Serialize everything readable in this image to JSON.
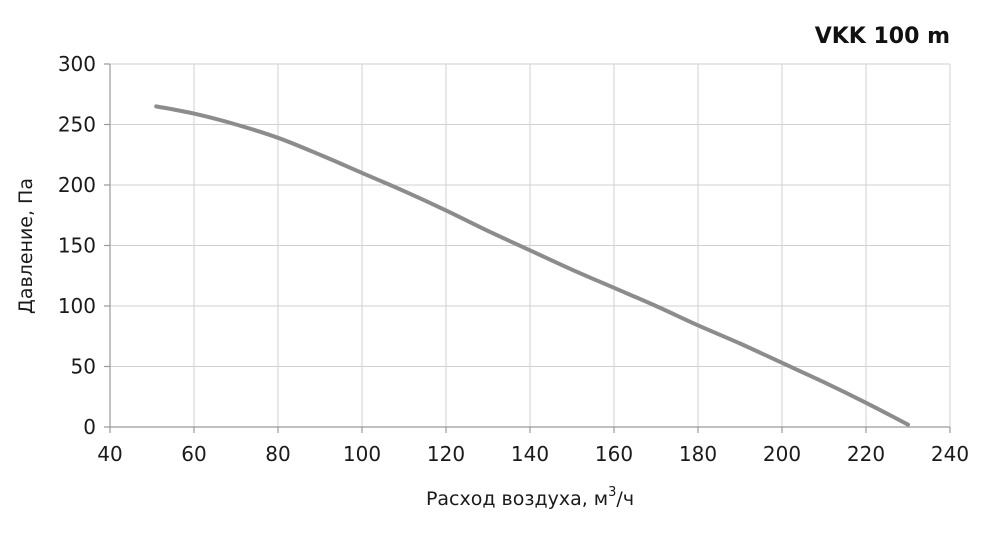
{
  "chart_data": {
    "type": "line",
    "title": "VKK 100 m",
    "xlabel": "Расход воздуха, м",
    "xlabel_sup": "3",
    "xlabel_suffix": "/ч",
    "ylabel": "Давление, Па",
    "xlim": [
      40,
      240
    ],
    "ylim": [
      0,
      300
    ],
    "x_ticks": [
      40,
      60,
      80,
      100,
      120,
      140,
      160,
      180,
      200,
      220,
      240
    ],
    "y_ticks": [
      0,
      50,
      100,
      150,
      200,
      250,
      300
    ],
    "grid": true,
    "series": [
      {
        "color": "#8c8c8c",
        "x": [
          51,
          60,
          70,
          80,
          90,
          100,
          110,
          120,
          130,
          140,
          150,
          160,
          170,
          180,
          190,
          200,
          210,
          220,
          230
        ],
        "y": [
          265,
          259,
          250,
          239,
          225,
          210,
          195,
          179,
          162,
          146,
          130,
          115,
          100,
          84,
          69,
          53,
          37,
          20,
          2
        ]
      }
    ]
  }
}
